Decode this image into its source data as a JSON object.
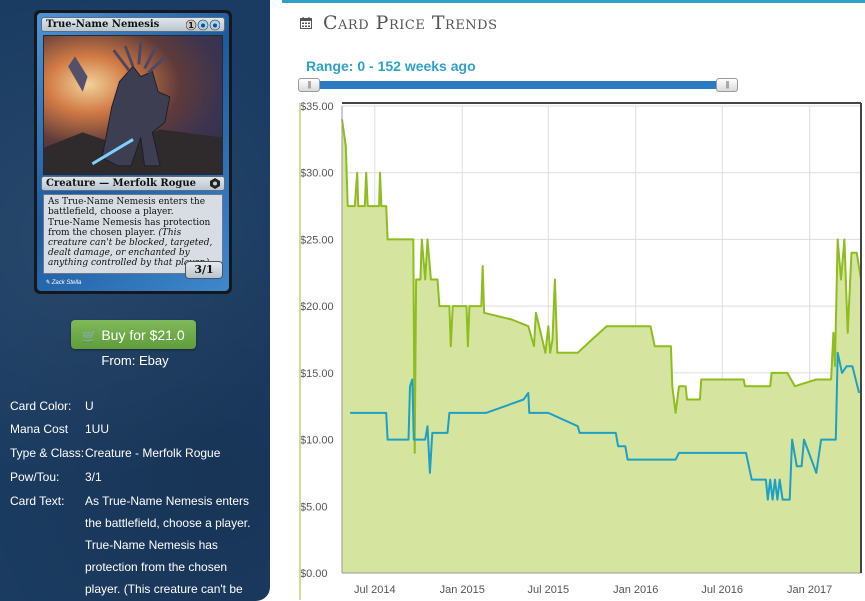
{
  "card": {
    "name": "True-Name Nemesis",
    "mana_symbols": "1UU",
    "type_line": "Creature — Merfolk Rogue",
    "rules_text_1": "As True-Name Nemesis enters the battlefield, choose a player.",
    "rules_text_2": "True-Name Nemesis has protection from the chosen player.",
    "reminder_text": "(This creature can't be blocked, targeted, dealt damage, or enchanted by anything controlled by that player.)",
    "power_toughness": "3/1",
    "artist": "Zack Stella"
  },
  "buy": {
    "icon": "shopping-cart-icon",
    "label": "Buy for $21.0",
    "from": "From: Ebay",
    "color": "#6aa84f"
  },
  "details": [
    {
      "label": "Card Color:",
      "value": "U"
    },
    {
      "label": "Mana Cost",
      "value": "1UU"
    },
    {
      "label": "Type & Class:",
      "value": "Creature - Merfolk Rogue"
    },
    {
      "label": "Pow/Tou:",
      "value": "3/1"
    },
    {
      "label": "Card Text:",
      "value": "As True-Name Nemesis enters the battlefield, choose a player. True-Name Nemesis has protection from the chosen player. (This creature can't be"
    }
  ],
  "header": {
    "icon": "calendar-icon",
    "title": "Card Price Trends",
    "range_label": "Range: 0 - 152 weeks ago"
  },
  "slider": {
    "min_weeks": 0,
    "max_weeks": 152
  },
  "chart_data": {
    "type": "area",
    "title": "",
    "xlabel": "",
    "ylabel": "",
    "ylim": [
      0,
      35
    ],
    "yticks": [
      "$0.00",
      "$5.00",
      "$10.00",
      "$15.00",
      "$20.00",
      "$25.00",
      "$30.00",
      "$35.00"
    ],
    "xticks": [
      "Jul 2014",
      "Jan 2015",
      "Jul 2015",
      "Jan 2016",
      "Jul 2016",
      "Jan 2017"
    ],
    "x_range": [
      "2014-04-23",
      "2017-04-19"
    ],
    "grid": true,
    "legend": "none",
    "series": [
      {
        "color": "#8fbc1f",
        "fill": "#d5e59f",
        "points": [
          [
            "2014-04-23",
            34
          ],
          [
            "2014-05-01",
            32
          ],
          [
            "2014-05-05",
            27.5
          ],
          [
            "2014-05-20",
            27.5
          ],
          [
            "2014-05-25",
            30
          ],
          [
            "2014-05-27",
            27.5
          ],
          [
            "2014-06-10",
            27.5
          ],
          [
            "2014-06-13",
            30
          ],
          [
            "2014-06-16",
            27.5
          ],
          [
            "2014-07-10",
            27.5
          ],
          [
            "2014-07-12",
            30
          ],
          [
            "2014-07-15",
            27.5
          ],
          [
            "2014-07-25",
            27.5
          ],
          [
            "2014-07-28",
            25
          ],
          [
            "2014-09-20",
            25
          ],
          [
            "2014-09-23",
            9
          ],
          [
            "2014-09-26",
            22
          ],
          [
            "2014-10-05",
            22
          ],
          [
            "2014-10-08",
            25
          ],
          [
            "2014-10-15",
            22
          ],
          [
            "2014-10-20",
            25
          ],
          [
            "2014-10-27",
            22
          ],
          [
            "2014-11-10",
            22
          ],
          [
            "2014-11-14",
            20
          ],
          [
            "2014-12-05",
            20
          ],
          [
            "2014-12-08",
            17
          ],
          [
            "2014-12-12",
            20
          ],
          [
            "2015-01-10",
            20
          ],
          [
            "2015-01-13",
            17
          ],
          [
            "2015-01-16",
            20
          ],
          [
            "2015-02-10",
            20
          ],
          [
            "2015-02-13",
            23
          ],
          [
            "2015-02-16",
            19.5
          ],
          [
            "2015-04-15",
            19
          ],
          [
            "2015-05-20",
            18.5
          ],
          [
            "2015-06-01",
            17
          ],
          [
            "2015-06-05",
            19.5
          ],
          [
            "2015-06-15",
            18
          ],
          [
            "2015-06-25",
            16.5
          ],
          [
            "2015-07-01",
            18.5
          ],
          [
            "2015-07-05",
            16.5
          ],
          [
            "2015-07-10",
            17.5
          ],
          [
            "2015-07-15",
            22
          ],
          [
            "2015-07-20",
            16.5
          ],
          [
            "2015-09-01",
            16.5
          ],
          [
            "2015-10-01",
            17.5
          ],
          [
            "2015-11-01",
            18.5
          ],
          [
            "2016-02-01",
            18.5
          ],
          [
            "2016-02-10",
            17
          ],
          [
            "2016-03-15",
            17
          ],
          [
            "2016-03-18",
            14
          ],
          [
            "2016-03-25",
            12
          ],
          [
            "2016-04-01",
            14
          ],
          [
            "2016-04-15",
            14
          ],
          [
            "2016-04-18",
            13
          ],
          [
            "2016-05-15",
            13
          ],
          [
            "2016-05-18",
            14.5
          ],
          [
            "2016-08-15",
            14.5
          ],
          [
            "2016-08-18",
            14
          ],
          [
            "2016-10-10",
            14
          ],
          [
            "2016-10-13",
            15
          ],
          [
            "2016-11-15",
            15
          ],
          [
            "2016-12-01",
            14
          ],
          [
            "2017-01-15",
            14.5
          ],
          [
            "2017-02-15",
            14.5
          ],
          [
            "2017-02-20",
            18
          ],
          [
            "2017-02-23",
            15.5
          ],
          [
            "2017-03-01",
            25
          ],
          [
            "2017-03-08",
            22
          ],
          [
            "2017-03-15",
            25
          ],
          [
            "2017-03-22",
            18
          ],
          [
            "2017-03-30",
            24
          ],
          [
            "2017-04-10",
            24
          ],
          [
            "2017-04-19",
            22
          ]
        ]
      },
      {
        "color": "#1ea0c4",
        "points": [
          [
            "2014-05-10",
            12
          ],
          [
            "2014-07-25",
            12
          ],
          [
            "2014-07-28",
            10
          ],
          [
            "2014-09-10",
            10
          ],
          [
            "2014-09-13",
            14
          ],
          [
            "2014-09-18",
            14.5
          ],
          [
            "2014-09-21",
            10
          ],
          [
            "2014-10-15",
            10
          ],
          [
            "2014-10-20",
            11
          ],
          [
            "2014-10-25",
            7.5
          ],
          [
            "2014-10-30",
            10.5
          ],
          [
            "2014-12-01",
            10.5
          ],
          [
            "2014-12-05",
            12
          ],
          [
            "2015-02-20",
            12
          ],
          [
            "2015-04-01",
            12.5
          ],
          [
            "2015-05-10",
            13
          ],
          [
            "2015-05-20",
            13.5
          ],
          [
            "2015-05-22",
            12
          ],
          [
            "2015-07-01",
            12
          ],
          [
            "2015-09-01",
            11
          ],
          [
            "2015-09-05",
            10.5
          ],
          [
            "2015-11-20",
            10.5
          ],
          [
            "2015-11-25",
            9.5
          ],
          [
            "2015-12-10",
            9.5
          ],
          [
            "2015-12-15",
            8.5
          ],
          [
            "2016-01-01",
            8.5
          ],
          [
            "2016-03-25",
            8.5
          ],
          [
            "2016-04-01",
            9
          ],
          [
            "2016-08-20",
            9
          ],
          [
            "2016-09-01",
            7
          ],
          [
            "2016-10-01",
            7
          ],
          [
            "2016-10-05",
            5.5
          ],
          [
            "2016-10-10",
            7
          ],
          [
            "2016-10-15",
            5.5
          ],
          [
            "2016-10-20",
            7
          ],
          [
            "2016-10-25",
            5.5
          ],
          [
            "2016-10-30",
            7
          ],
          [
            "2016-11-05",
            5.5
          ],
          [
            "2016-11-20",
            5.5
          ],
          [
            "2016-11-25",
            10
          ],
          [
            "2016-12-05",
            8
          ],
          [
            "2016-12-15",
            8
          ],
          [
            "2016-12-20",
            10
          ],
          [
            "2017-01-10",
            8
          ],
          [
            "2017-01-15",
            7.5
          ],
          [
            "2017-01-25",
            10
          ],
          [
            "2017-02-25",
            10
          ],
          [
            "2017-03-01",
            16.5
          ],
          [
            "2017-03-10",
            15
          ],
          [
            "2017-03-20",
            15.5
          ],
          [
            "2017-04-01",
            15.5
          ],
          [
            "2017-04-15",
            13.5
          ]
        ]
      }
    ]
  }
}
